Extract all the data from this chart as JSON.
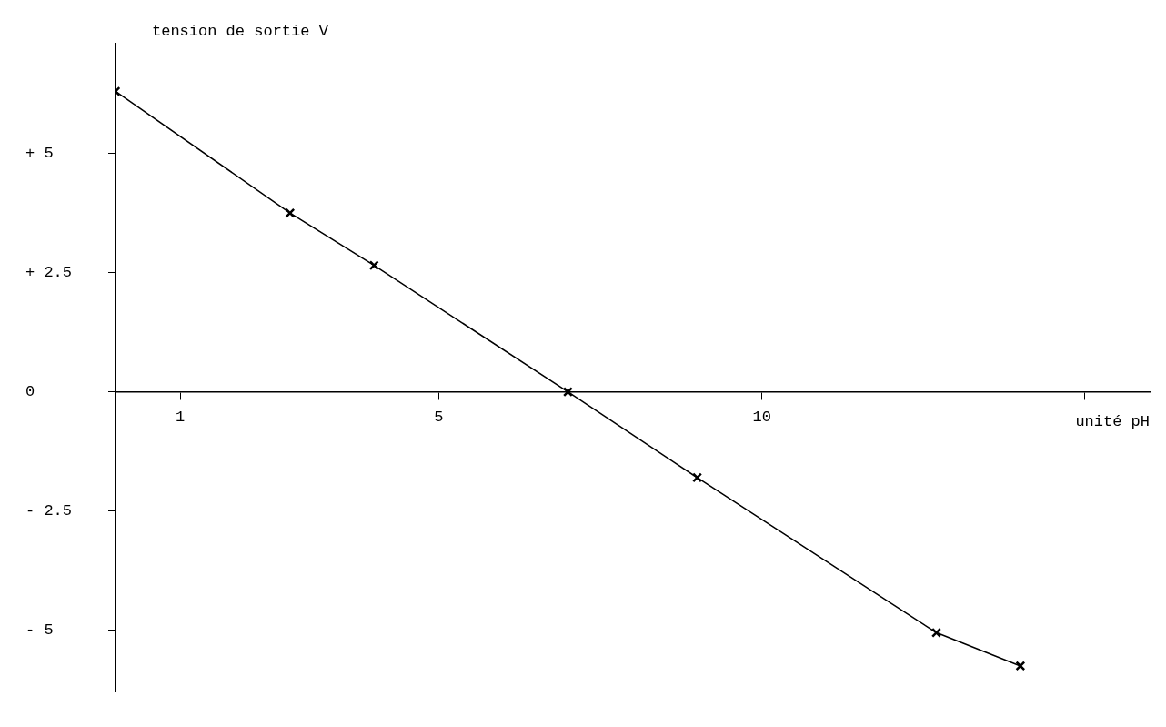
{
  "chart_data": {
    "type": "line",
    "xlabel": "unité pH",
    "ylabel": "tension de sortie V",
    "x": [
      0,
      2.7,
      4,
      7,
      9,
      12.7,
      14
    ],
    "series": [
      {
        "color": "#000000",
        "values": [
          6.3,
          3.75,
          2.65,
          0,
          -1.8,
          -5.05,
          -5.75
        ]
      }
    ],
    "xlim": [
      0,
      16
    ],
    "ylim": [
      -6.3,
      7.3
    ],
    "xticks": [
      1,
      5,
      10,
      {
        "value": 15,
        "label": null
      }
    ],
    "yticks": [
      {
        "value": 5,
        "label": "+ 5"
      },
      {
        "value": 2.5,
        "label": "+ 2.5"
      },
      0,
      {
        "value": -2.5,
        "label": "- 2.5"
      },
      {
        "value": -5,
        "label": "- 5"
      }
    ],
    "grid": false,
    "legend": false,
    "marker": "cross",
    "line_style": "solid"
  }
}
